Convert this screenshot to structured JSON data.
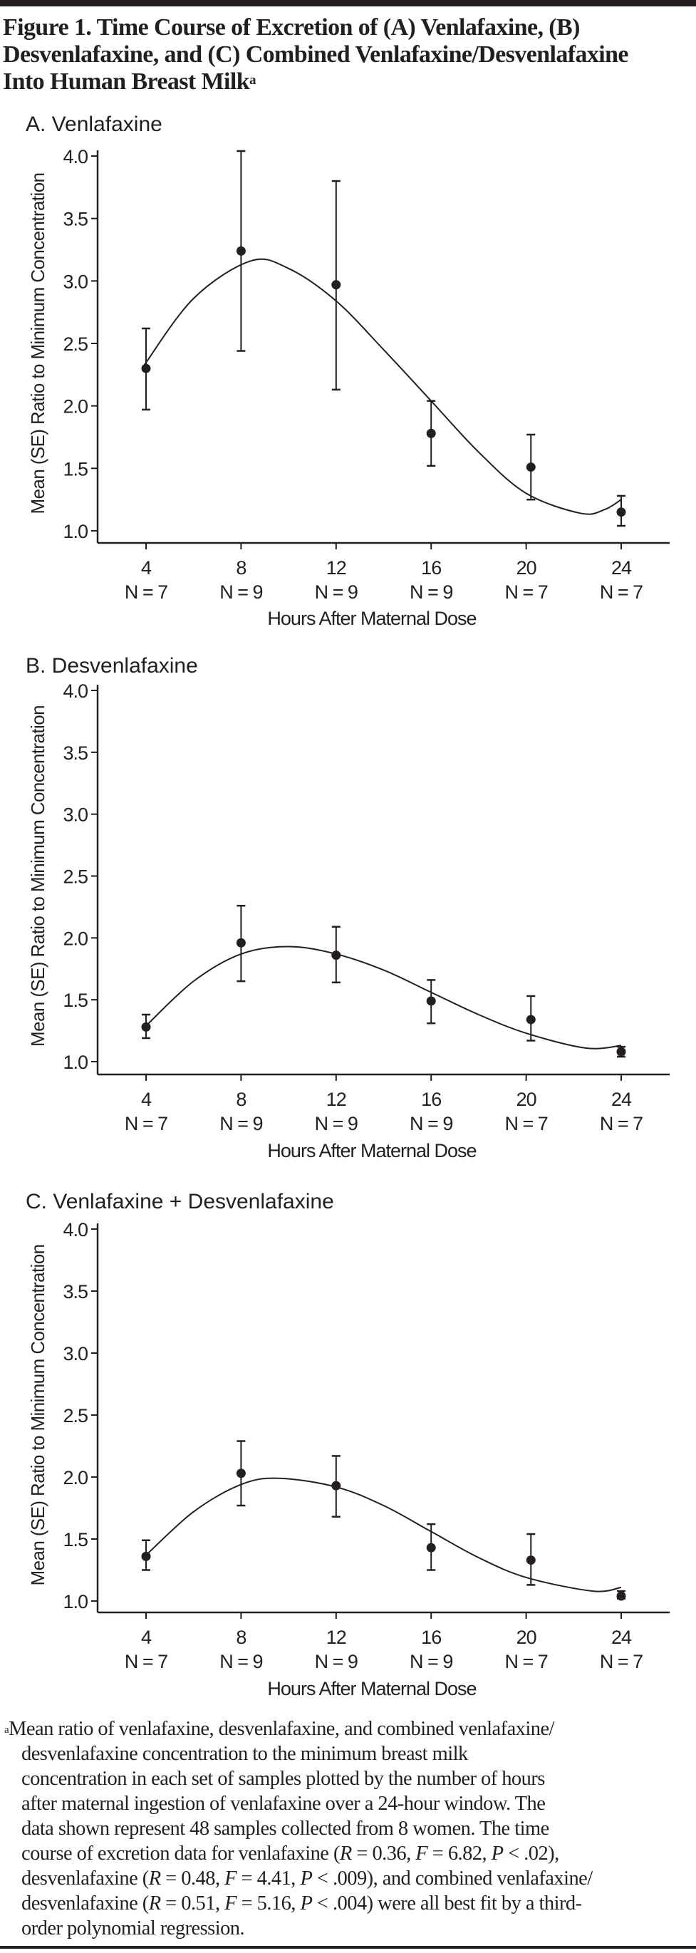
{
  "figure": {
    "title_lines": [
      "Figure 1. Time Course of Excretion of (A) Venlafaxine, (B)",
      "Desvenlafaxine, and (C) Combined Venlafaxine/Desvenlafaxine",
      "Into Human Breast Milk"
    ],
    "title_footnote_mark": "a"
  },
  "chart_data": [
    {
      "type": "scatter",
      "title": "A. Venlafaxine",
      "xlabel": "Hours After Maternal Dose",
      "ylabel": "Mean (SE) Ratio to Minimum Concentration",
      "ylim": [
        1.0,
        4.0
      ],
      "yticks": [
        "1.0",
        "1.5",
        "2.0",
        "2.5",
        "3.0",
        "3.5",
        "4.0"
      ],
      "xticks": [
        "4",
        "8",
        "12",
        "16",
        "20",
        "24"
      ],
      "n_labels": [
        "N = 7",
        "N = 9",
        "N = 9",
        "N = 9",
        "N = 7",
        "N = 7"
      ],
      "grid": false,
      "points": [
        {
          "x": 4,
          "y": 2.3,
          "lo": 1.97,
          "hi": 2.62
        },
        {
          "x": 8,
          "y": 3.24,
          "lo": 2.44,
          "hi": 4.04
        },
        {
          "x": 12,
          "y": 2.97,
          "lo": 2.13,
          "hi": 3.8
        },
        {
          "x": 16,
          "y": 1.78,
          "lo": 1.52,
          "hi": 2.04
        },
        {
          "x": 20.2,
          "y": 1.51,
          "lo": 1.25,
          "hi": 1.77
        },
        {
          "x": 24,
          "y": 1.15,
          "lo": 1.04,
          "hi": 1.28
        }
      ],
      "fit_curve": [
        [
          3.9,
          2.32
        ],
        [
          6,
          2.86
        ],
        [
          8.4,
          3.16
        ],
        [
          10,
          3.1
        ],
        [
          12,
          2.84
        ],
        [
          14,
          2.45
        ],
        [
          16,
          2.04
        ],
        [
          18,
          1.63
        ],
        [
          20,
          1.3
        ],
        [
          22.3,
          1.14
        ],
        [
          23.3,
          1.17
        ],
        [
          24,
          1.25
        ]
      ]
    },
    {
      "type": "scatter",
      "title": "B. Desvenlafaxine",
      "xlabel": "Hours After Maternal Dose",
      "ylabel": "Mean (SE) Ratio to Minimum Concentration",
      "ylim": [
        1.0,
        4.0
      ],
      "yticks": [
        "1.0",
        "1.5",
        "2.0",
        "2.5",
        "3.0",
        "3.5",
        "4.0"
      ],
      "xticks": [
        "4",
        "8",
        "12",
        "16",
        "20",
        "24"
      ],
      "n_labels": [
        "N = 7",
        "N = 9",
        "N = 9",
        "N = 9",
        "N = 7",
        "N = 7"
      ],
      "grid": false,
      "points": [
        {
          "x": 4,
          "y": 1.28,
          "lo": 1.19,
          "hi": 1.38
        },
        {
          "x": 8,
          "y": 1.96,
          "lo": 1.65,
          "hi": 2.26
        },
        {
          "x": 12,
          "y": 1.86,
          "lo": 1.64,
          "hi": 2.09
        },
        {
          "x": 16,
          "y": 1.49,
          "lo": 1.31,
          "hi": 1.66
        },
        {
          "x": 20.2,
          "y": 1.34,
          "lo": 1.17,
          "hi": 1.53
        },
        {
          "x": 24,
          "y": 1.08,
          "lo": 1.04,
          "hi": 1.12
        }
      ],
      "fit_curve": [
        [
          4,
          1.29
        ],
        [
          6,
          1.65
        ],
        [
          8,
          1.87
        ],
        [
          10,
          1.93
        ],
        [
          12,
          1.87
        ],
        [
          14,
          1.74
        ],
        [
          16,
          1.56
        ],
        [
          18,
          1.38
        ],
        [
          20,
          1.23
        ],
        [
          22.5,
          1.11
        ],
        [
          24,
          1.13
        ]
      ]
    },
    {
      "type": "scatter",
      "title": "C. Venlafaxine + Desvenlafaxine",
      "xlabel": "Hours After Maternal Dose",
      "ylabel": "Mean (SE) Ratio to Minimum Concentration",
      "ylim": [
        1.0,
        4.0
      ],
      "yticks": [
        "1.0",
        "1.5",
        "2.0",
        "2.5",
        "3.0",
        "3.5",
        "4.0"
      ],
      "xticks": [
        "4",
        "8",
        "12",
        "16",
        "20",
        "24"
      ],
      "n_labels": [
        "N = 7",
        "N = 9",
        "N = 9",
        "N = 9",
        "N = 7",
        "N = 7"
      ],
      "grid": false,
      "points": [
        {
          "x": 4,
          "y": 1.36,
          "lo": 1.25,
          "hi": 1.49
        },
        {
          "x": 8,
          "y": 2.03,
          "lo": 1.77,
          "hi": 2.29
        },
        {
          "x": 12,
          "y": 1.93,
          "lo": 1.68,
          "hi": 2.17
        },
        {
          "x": 16,
          "y": 1.43,
          "lo": 1.25,
          "hi": 1.62
        },
        {
          "x": 20.2,
          "y": 1.33,
          "lo": 1.13,
          "hi": 1.54
        },
        {
          "x": 24,
          "y": 1.04,
          "lo": 1.02,
          "hi": 1.08
        }
      ],
      "fit_curve": [
        [
          4,
          1.37
        ],
        [
          6,
          1.72
        ],
        [
          8,
          1.94
        ],
        [
          9.6,
          1.99
        ],
        [
          12,
          1.92
        ],
        [
          14,
          1.77
        ],
        [
          16,
          1.56
        ],
        [
          18,
          1.35
        ],
        [
          20,
          1.19
        ],
        [
          22.8,
          1.08
        ],
        [
          24,
          1.11
        ]
      ]
    }
  ],
  "footnote": {
    "mark": "a",
    "lines": [
      [
        {
          "t": "Mean ratio of venlafaxine, desvenlafaxine, and combined venlafaxine/"
        }
      ],
      [
        {
          "t": "desvenlafaxine concentration to the minimum breast milk"
        }
      ],
      [
        {
          "t": "concentration in each set of samples plotted by the number of hours"
        }
      ],
      [
        {
          "t": "after maternal ingestion of venlafaxine over a 24-hour window. The"
        }
      ],
      [
        {
          "t": "data shown represent 48 samples collected from 8 women. The time"
        }
      ],
      [
        {
          "t": "course of excretion data for venlafaxine ("
        },
        {
          "t": "R",
          "i": true
        },
        {
          "t": " = 0.36, "
        },
        {
          "t": "F",
          "i": true
        },
        {
          "t": " = 6.82, "
        },
        {
          "t": "P",
          "i": true
        },
        {
          "t": " < .02),"
        }
      ],
      [
        {
          "t": "desvenlafaxine ("
        },
        {
          "t": "R",
          "i": true
        },
        {
          "t": " = 0.48, "
        },
        {
          "t": "F",
          "i": true
        },
        {
          "t": " = 4.41, "
        },
        {
          "t": "P",
          "i": true
        },
        {
          "t": " < .009), and combined venlafaxine/"
        }
      ],
      [
        {
          "t": "desvenlafaxine ("
        },
        {
          "t": "R",
          "i": true
        },
        {
          "t": " = 0.51, "
        },
        {
          "t": "F",
          "i": true
        },
        {
          "t": " = 5.16, "
        },
        {
          "t": "P",
          "i": true
        },
        {
          "t": " < .004) were all best fit by a third-"
        }
      ],
      [
        {
          "t": "order polynomial regression."
        }
      ]
    ]
  }
}
